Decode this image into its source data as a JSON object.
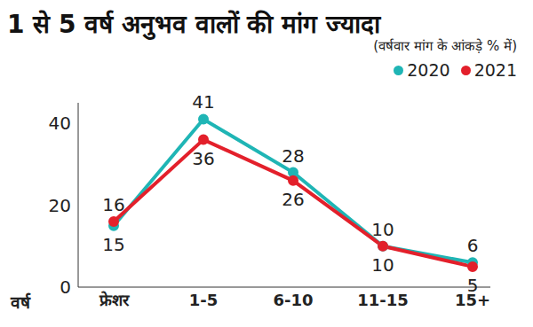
{
  "chart_data": {
    "type": "line",
    "title": "1 से 5 वर्ष अनुभव वालों की मांग ज्यादा",
    "annotation": "(वर्षवार मांग के आंकड़े % में)",
    "x_label": "वर्ष",
    "categories": [
      "फ्रेशर",
      "1-5",
      "6-10",
      "11-15",
      "15+"
    ],
    "series": [
      {
        "name": "2020",
        "color": "#1fb5b5",
        "values": [
          15,
          41,
          28,
          10,
          6
        ]
      },
      {
        "name": "2021",
        "color": "#e3202b",
        "values": [
          16,
          36,
          26,
          10,
          5
        ]
      }
    ],
    "ylim": [
      0,
      45
    ],
    "yticks": [
      0,
      20,
      40
    ],
    "grid": false,
    "legend": "upper right",
    "data_labels": true,
    "marker": "circle"
  }
}
